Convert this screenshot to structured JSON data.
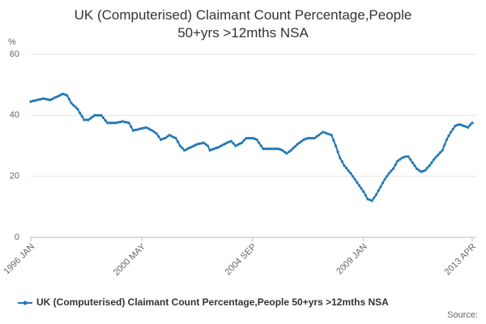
{
  "chart_data": {
    "type": "line",
    "title": "UK (Computerised) Claimant Count Percentage,People 50+yrs >12mths NSA",
    "y_unit": "%",
    "source_label": "Source:",
    "categories": [
      "1996 JAN",
      null,
      null,
      null,
      null,
      null,
      null,
      null,
      null,
      null,
      null,
      null,
      null,
      null,
      null,
      null,
      null,
      null,
      null,
      null,
      null,
      null,
      null,
      null,
      null,
      null,
      null,
      null,
      null,
      null,
      null,
      null,
      null,
      null,
      null,
      null,
      null,
      null,
      null,
      null,
      null,
      null,
      null,
      null,
      null,
      null,
      null,
      null,
      null,
      null,
      null,
      null,
      "2000 MAY",
      null,
      null,
      null,
      null,
      null,
      null,
      null,
      null,
      null,
      null,
      null,
      null,
      null,
      null,
      null,
      null,
      null,
      null,
      null,
      null,
      null,
      null,
      null,
      null,
      null,
      null,
      null,
      null,
      null,
      null,
      null,
      null,
      null,
      null,
      null,
      null,
      null,
      null,
      null,
      null,
      null,
      null,
      null,
      null,
      null,
      null,
      null,
      null,
      null,
      null,
      null,
      "2004 SEP",
      null,
      null,
      null,
      null,
      null,
      null,
      null,
      null,
      null,
      null,
      null,
      null,
      null,
      null,
      null,
      null,
      null,
      null,
      null,
      null,
      null,
      null,
      null,
      null,
      null,
      null,
      null,
      null,
      null,
      null,
      null,
      null,
      null,
      null,
      null,
      null,
      null,
      null,
      null,
      null,
      null,
      null,
      null,
      null,
      null,
      null,
      null,
      null,
      null,
      null,
      null,
      "2009 JAN",
      null,
      null,
      null,
      null,
      null,
      null,
      null,
      null,
      null,
      null,
      null,
      null,
      null,
      null,
      null,
      null,
      null,
      null,
      null,
      null,
      null,
      null,
      null,
      null,
      null,
      null,
      null,
      null,
      null,
      null,
      null,
      null,
      null,
      null,
      null,
      null,
      null,
      null,
      null,
      null,
      null,
      null,
      null,
      null,
      null,
      null,
      null,
      null,
      null,
      null,
      "2013 APR"
    ],
    "series": [
      {
        "name": "UK (Computerised) Claimant Count Percentage,People 50+yrs >12mths NSA",
        "color": "#2277b6",
        "values": [
          44.5,
          44.7,
          44.8,
          45,
          45.2,
          45.3,
          45.5,
          45.3,
          45.2,
          45,
          45.3,
          45.7,
          46,
          46.3,
          46.7,
          47,
          46.8,
          46.5,
          45.3,
          44,
          43.3,
          42.7,
          42,
          40.8,
          39.7,
          38.5,
          38.5,
          38.5,
          39,
          39.5,
          40,
          40,
          40,
          40,
          39.2,
          38.3,
          37.5,
          37.5,
          37.5,
          37.5,
          37.5,
          37.7,
          37.8,
          38,
          37.8,
          37.7,
          37.5,
          36.3,
          35,
          35.2,
          35.3,
          35.5,
          35.7,
          35.8,
          36,
          35.7,
          35.3,
          35,
          34.5,
          34,
          33,
          32,
          32.3,
          32.5,
          33,
          33.5,
          33.2,
          32.8,
          32.5,
          31.3,
          30,
          29.3,
          28.5,
          28.8,
          29.2,
          29.5,
          29.8,
          30.2,
          30.5,
          30.7,
          30.8,
          31,
          30.5,
          30,
          28.5,
          28.8,
          29,
          29.3,
          29.5,
          29.9,
          30.3,
          30.6,
          31,
          31.3,
          31.5,
          30.8,
          30,
          30.3,
          30.7,
          31,
          31.8,
          32.5,
          32.5,
          32.5,
          32.5,
          32.3,
          32,
          31,
          30,
          29,
          29,
          29,
          29,
          29,
          29,
          29,
          29,
          28.8,
          28.5,
          28,
          27.5,
          28,
          28.5,
          29.2,
          29.8,
          30.5,
          31,
          31.5,
          32,
          32.3,
          32.5,
          32.5,
          32.5,
          32.5,
          33,
          33.5,
          34,
          34.5,
          34.3,
          34,
          33.8,
          33.5,
          31.8,
          30,
          28,
          26,
          24.8,
          23.5,
          22.7,
          21.8,
          21,
          20,
          19,
          18,
          17,
          16,
          15,
          13.8,
          12.5,
          12.3,
          12,
          13,
          14,
          15.3,
          16.5,
          17.8,
          19,
          20,
          21,
          21.8,
          22.5,
          23.8,
          25,
          25.5,
          26,
          26.3,
          26.5,
          26.5,
          25.5,
          24.5,
          23.5,
          22.5,
          22,
          21.5,
          21.7,
          22,
          22.8,
          23.5,
          24.5,
          25.5,
          26.3,
          27,
          27.8,
          28.5,
          30.3,
          32,
          33.3,
          34.5,
          35.5,
          36.5,
          36.8,
          37,
          36.8,
          36.5,
          36.3,
          36,
          36.8,
          37.5
        ]
      }
    ],
    "ylim": [
      0,
      60
    ],
    "yticks": [
      0,
      20,
      40,
      60
    ],
    "grid": true
  }
}
